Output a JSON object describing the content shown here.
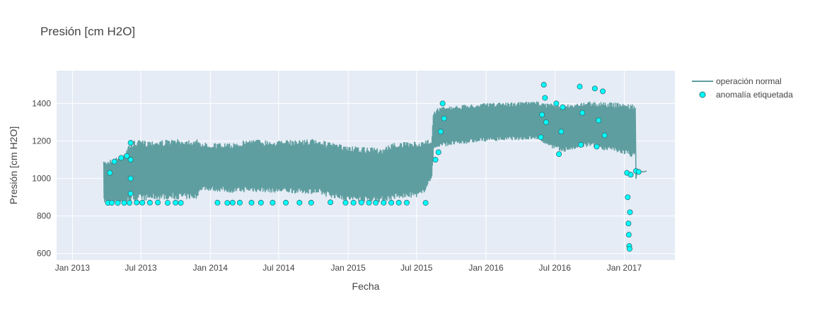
{
  "chart_data": {
    "type": "line",
    "title": "Presión [cm H2O]",
    "xlabel": "Fecha",
    "ylabel": "Presión [cm H2O]",
    "x_ticks": [
      "Jan 2013",
      "Jul 2013",
      "Jan 2014",
      "Jul 2014",
      "Jan 2015",
      "Jul 2015",
      "Jan 2016",
      "Jul 2016",
      "Jan 2017"
    ],
    "x_tick_dates": [
      "2013-01-01",
      "2013-07-01",
      "2014-01-01",
      "2014-07-01",
      "2015-01-01",
      "2015-07-01",
      "2016-01-01",
      "2016-07-01",
      "2017-01-01"
    ],
    "xlim": [
      "2012-11-20",
      "2017-05-15"
    ],
    "y_ticks": [
      600,
      800,
      1000,
      1200,
      1400
    ],
    "ylim": [
      565,
      1575
    ],
    "grid": true,
    "legend_position": "top-right",
    "colors": {
      "plot_bg": "#e5ecf6",
      "grid": "#ffffff",
      "normal": "#5f9ea0",
      "anomaly_fill": "#00ffff",
      "anomaly_edge": "#2f6f73"
    },
    "series": [
      {
        "name": "operación normal",
        "style": "line",
        "color": "#5f9ea0",
        "envelope": [
          {
            "date": "2013-03-25",
            "low": 870,
            "high": 1090
          },
          {
            "date": "2013-05-10",
            "low": 870,
            "high": 1120
          },
          {
            "date": "2013-06-05",
            "low": 870,
            "high": 1190
          },
          {
            "date": "2013-06-06",
            "low": 880,
            "high": 1200
          },
          {
            "date": "2013-09-01",
            "low": 890,
            "high": 1205
          },
          {
            "date": "2013-11-25",
            "low": 890,
            "high": 1210
          },
          {
            "date": "2013-12-05",
            "low": 940,
            "high": 1190
          },
          {
            "date": "2014-03-01",
            "low": 925,
            "high": 1185
          },
          {
            "date": "2014-04-15",
            "low": 930,
            "high": 1210
          },
          {
            "date": "2014-07-01",
            "low": 925,
            "high": 1200
          },
          {
            "date": "2014-10-01",
            "low": 920,
            "high": 1210
          },
          {
            "date": "2015-01-01",
            "low": 880,
            "high": 1170
          },
          {
            "date": "2015-04-01",
            "low": 875,
            "high": 1160
          },
          {
            "date": "2015-05-01",
            "low": 890,
            "high": 1190
          },
          {
            "date": "2015-07-15",
            "low": 905,
            "high": 1195
          },
          {
            "date": "2015-08-10",
            "low": 1000,
            "high": 1210
          },
          {
            "date": "2015-08-15",
            "low": 1150,
            "high": 1360
          },
          {
            "date": "2015-09-01",
            "low": 1170,
            "high": 1380
          },
          {
            "date": "2016-01-01",
            "low": 1200,
            "high": 1400
          },
          {
            "date": "2016-05-15",
            "low": 1210,
            "high": 1410
          },
          {
            "date": "2016-07-15",
            "low": 1140,
            "high": 1390
          },
          {
            "date": "2016-10-01",
            "low": 1170,
            "high": 1410
          },
          {
            "date": "2017-01-01",
            "low": 1130,
            "high": 1400
          },
          {
            "date": "2017-01-30",
            "low": 1110,
            "high": 1390
          }
        ]
      },
      {
        "name": "anomalía etiquetada",
        "style": "markers",
        "color": "#00ffff",
        "points": [
          {
            "date": "2013-04-05",
            "value": 870
          },
          {
            "date": "2013-04-10",
            "value": 1030
          },
          {
            "date": "2013-04-15",
            "value": 870
          },
          {
            "date": "2013-04-22",
            "value": 1090
          },
          {
            "date": "2013-05-01",
            "value": 870
          },
          {
            "date": "2013-05-10",
            "value": 1110
          },
          {
            "date": "2013-05-18",
            "value": 870
          },
          {
            "date": "2013-05-25",
            "value": 1120
          },
          {
            "date": "2013-06-01",
            "value": 870
          },
          {
            "date": "2013-06-04",
            "value": 1190
          },
          {
            "date": "2013-06-04",
            "value": 1100
          },
          {
            "date": "2013-06-04",
            "value": 1000
          },
          {
            "date": "2013-06-04",
            "value": 920
          },
          {
            "date": "2013-06-20",
            "value": 872
          },
          {
            "date": "2013-07-05",
            "value": 871
          },
          {
            "date": "2013-07-25",
            "value": 871
          },
          {
            "date": "2013-08-15",
            "value": 872
          },
          {
            "date": "2013-09-10",
            "value": 870
          },
          {
            "date": "2013-10-01",
            "value": 871
          },
          {
            "date": "2013-10-15",
            "value": 870
          },
          {
            "date": "2014-01-20",
            "value": 871
          },
          {
            "date": "2014-02-15",
            "value": 870
          },
          {
            "date": "2014-03-01",
            "value": 871
          },
          {
            "date": "2014-03-20",
            "value": 871
          },
          {
            "date": "2014-04-20",
            "value": 871
          },
          {
            "date": "2014-05-15",
            "value": 871
          },
          {
            "date": "2014-06-15",
            "value": 871
          },
          {
            "date": "2014-07-20",
            "value": 871
          },
          {
            "date": "2014-08-25",
            "value": 871
          },
          {
            "date": "2014-09-25",
            "value": 871
          },
          {
            "date": "2014-11-15",
            "value": 873
          },
          {
            "date": "2014-12-25",
            "value": 871
          },
          {
            "date": "2015-01-15",
            "value": 871
          },
          {
            "date": "2015-02-05",
            "value": 872
          },
          {
            "date": "2015-02-25",
            "value": 871
          },
          {
            "date": "2015-03-15",
            "value": 871
          },
          {
            "date": "2015-04-05",
            "value": 871
          },
          {
            "date": "2015-04-25",
            "value": 871
          },
          {
            "date": "2015-05-15",
            "value": 871
          },
          {
            "date": "2015-06-05",
            "value": 871
          },
          {
            "date": "2015-07-25",
            "value": 870
          },
          {
            "date": "2015-08-20",
            "value": 1100
          },
          {
            "date": "2015-08-28",
            "value": 1140
          },
          {
            "date": "2015-09-03",
            "value": 1250
          },
          {
            "date": "2015-09-08",
            "value": 1400
          },
          {
            "date": "2015-09-12",
            "value": 1320
          },
          {
            "date": "2016-05-25",
            "value": 1220
          },
          {
            "date": "2016-05-28",
            "value": 1340
          },
          {
            "date": "2016-06-02",
            "value": 1500
          },
          {
            "date": "2016-06-05",
            "value": 1430
          },
          {
            "date": "2016-06-08",
            "value": 1300
          },
          {
            "date": "2016-07-05",
            "value": 1400
          },
          {
            "date": "2016-07-12",
            "value": 1130
          },
          {
            "date": "2016-07-18",
            "value": 1250
          },
          {
            "date": "2016-07-22",
            "value": 1380
          },
          {
            "date": "2016-09-05",
            "value": 1490
          },
          {
            "date": "2016-09-08",
            "value": 1180
          },
          {
            "date": "2016-09-12",
            "value": 1350
          },
          {
            "date": "2016-10-15",
            "value": 1480
          },
          {
            "date": "2016-10-20",
            "value": 1170
          },
          {
            "date": "2016-10-25",
            "value": 1310
          },
          {
            "date": "2016-11-05",
            "value": 1465
          },
          {
            "date": "2016-11-10",
            "value": 1230
          },
          {
            "date": "2017-01-08",
            "value": 1030
          },
          {
            "date": "2017-01-10",
            "value": 900
          },
          {
            "date": "2017-01-12",
            "value": 760
          },
          {
            "date": "2017-01-13",
            "value": 700
          },
          {
            "date": "2017-01-14",
            "value": 640
          },
          {
            "date": "2017-01-15",
            "value": 625
          },
          {
            "date": "2017-01-16",
            "value": 820
          },
          {
            "date": "2017-01-18",
            "value": 1020
          },
          {
            "date": "2017-02-01",
            "value": 1040
          },
          {
            "date": "2017-02-08",
            "value": 1035
          }
        ]
      }
    ]
  }
}
